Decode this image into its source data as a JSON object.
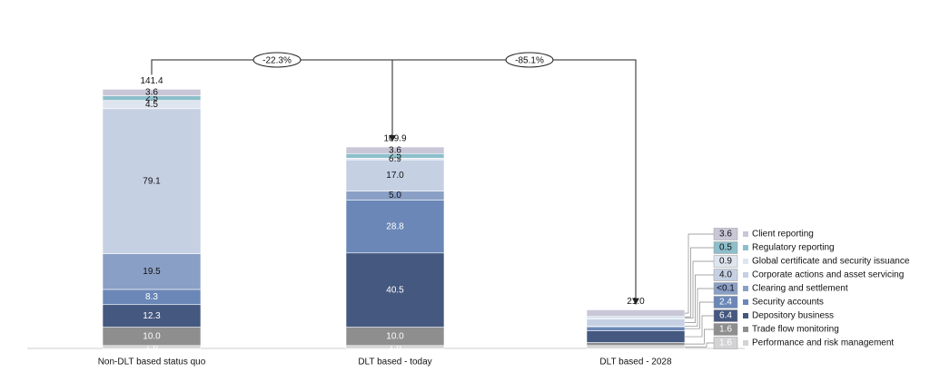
{
  "chart_data": {
    "type": "stacked-bar",
    "categories": [
      "Non-DLT based status quo",
      "DLT based - today",
      "DLT based - 2028"
    ],
    "series": [
      {
        "name": "Performance and risk management",
        "color": "#d3d3d6",
        "values": [
          1.6,
          1.6,
          1.6
        ],
        "value_labels": [
          "1.6",
          "1.6",
          "1.6"
        ]
      },
      {
        "name": "Trade flow monitoring",
        "color": "#8e8e8e",
        "values": [
          10.0,
          10.0,
          1.6
        ],
        "value_labels": [
          "10.0",
          "10.0",
          "1.6"
        ]
      },
      {
        "name": "Depository business",
        "color": "#45587f",
        "values": [
          12.3,
          40.5,
          6.4
        ],
        "value_labels": [
          "12.3",
          "40.5",
          "6.4"
        ]
      },
      {
        "name": "Security accounts",
        "color": "#6a87b7",
        "values": [
          8.3,
          28.8,
          2.4
        ],
        "value_labels": [
          "8.3",
          "28.8",
          "2.4"
        ]
      },
      {
        "name": "Clearing and settlement",
        "color": "#8a9fc5",
        "values": [
          19.5,
          5.0,
          0.05
        ],
        "value_labels": [
          "19.5",
          "5.0",
          "<0.1"
        ]
      },
      {
        "name": "Corporate actions and asset servicing",
        "color": "#c5d0e3",
        "values": [
          79.1,
          17.0,
          4.0
        ],
        "value_labels": [
          "79.1",
          "17.0",
          "4.0"
        ]
      },
      {
        "name": "Global certificate and security issuance",
        "color": "#dfe5ef",
        "values": [
          4.5,
          0.9,
          0.9
        ],
        "value_labels": [
          "4.5",
          "0.9",
          "0.9"
        ]
      },
      {
        "name": "Regulatory reporting",
        "color": "#8dbfcb",
        "values": [
          2.5,
          2.5,
          0.5
        ],
        "value_labels": [
          "2.5",
          "2.5",
          "0.5"
        ]
      },
      {
        "name": "Client reporting",
        "color": "#c9c7d7",
        "values": [
          3.6,
          3.6,
          3.6
        ],
        "value_labels": [
          "3.6",
          "3.6",
          "3.6"
        ]
      }
    ],
    "totals": [
      {
        "value": 141.4,
        "label": "141.4"
      },
      {
        "value": 109.9,
        "label": "109.9"
      },
      {
        "value": 21.0,
        "label": "21.0"
      }
    ],
    "changes": [
      {
        "value": -22.3,
        "label": "-22.3%"
      },
      {
        "value": -85.1,
        "label": "-85.1%"
      }
    ],
    "ylim": [
      0,
      150
    ]
  }
}
